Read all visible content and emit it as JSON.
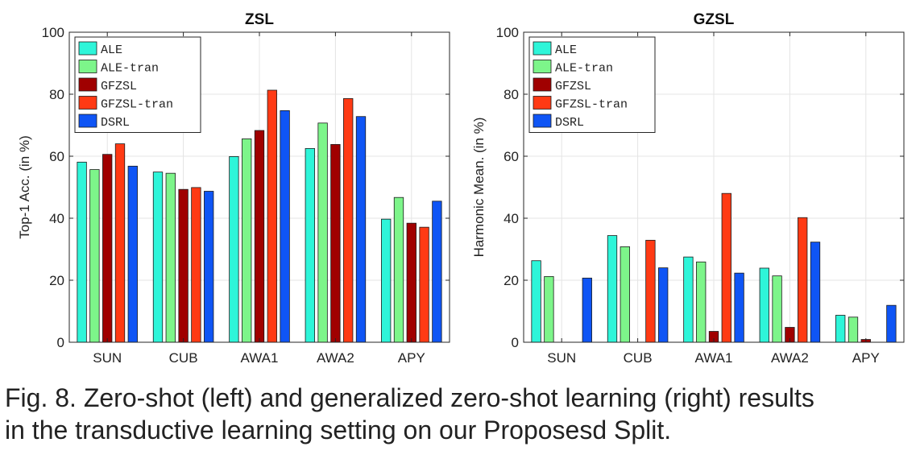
{
  "colors": {
    "ALE": "#2ef5d9",
    "ALE-tran": "#7df58a",
    "GFZSL": "#a00000",
    "GFZSL-tran": "#ff3a14",
    "DSRL": "#0f55f5",
    "axis": "#262626",
    "grid": "#e4e4e4"
  },
  "chart_data": [
    {
      "type": "bar",
      "title": "ZSL",
      "xlabel": "",
      "ylabel": "Top-1 Acc. (in %)",
      "ylim": [
        0,
        100
      ],
      "yticks": [
        0,
        20,
        40,
        60,
        80,
        100
      ],
      "grid": true,
      "legend_position": "top-left",
      "categories": [
        "SUN",
        "CUB",
        "AWA1",
        "AWA2",
        "APY"
      ],
      "series": [
        {
          "name": "ALE",
          "values": [
            58.1,
            54.9,
            59.9,
            62.5,
            39.7
          ]
        },
        {
          "name": "ALE-tran",
          "values": [
            55.7,
            54.5,
            65.6,
            70.7,
            46.7
          ]
        },
        {
          "name": "GFZSL",
          "values": [
            60.6,
            49.3,
            68.3,
            63.8,
            38.4
          ]
        },
        {
          "name": "GFZSL-tran",
          "values": [
            64.0,
            49.9,
            81.3,
            78.6,
            37.1
          ]
        },
        {
          "name": "DSRL",
          "values": [
            56.8,
            48.7,
            74.7,
            72.8,
            45.5
          ]
        }
      ]
    },
    {
      "type": "bar",
      "title": "GZSL",
      "xlabel": "",
      "ylabel": "Harmonic Mean. (in %)",
      "ylim": [
        0,
        100
      ],
      "yticks": [
        0,
        20,
        40,
        60,
        80,
        100
      ],
      "grid": true,
      "legend_position": "top-left",
      "categories": [
        "SUN",
        "CUB",
        "AWA1",
        "AWA2",
        "APY"
      ],
      "series": [
        {
          "name": "ALE",
          "values": [
            26.3,
            34.4,
            27.5,
            23.9,
            8.7
          ]
        },
        {
          "name": "ALE-tran",
          "values": [
            21.2,
            30.8,
            25.9,
            21.4,
            8.1
          ]
        },
        {
          "name": "GFZSL",
          "values": [
            0.0,
            0.0,
            3.5,
            4.8,
            0.9
          ]
        },
        {
          "name": "GFZSL-tran",
          "values": [
            0.0,
            32.9,
            48.0,
            40.2,
            0.0
          ]
        },
        {
          "name": "DSRL",
          "values": [
            20.7,
            24.0,
            22.3,
            32.3,
            11.9
          ]
        }
      ]
    }
  ],
  "caption": {
    "line1": "Fig. 8. Zero-shot (left) and generalized zero-shot learning (right) results",
    "line2": "in the transductive learning setting on our Proposesd Split."
  }
}
